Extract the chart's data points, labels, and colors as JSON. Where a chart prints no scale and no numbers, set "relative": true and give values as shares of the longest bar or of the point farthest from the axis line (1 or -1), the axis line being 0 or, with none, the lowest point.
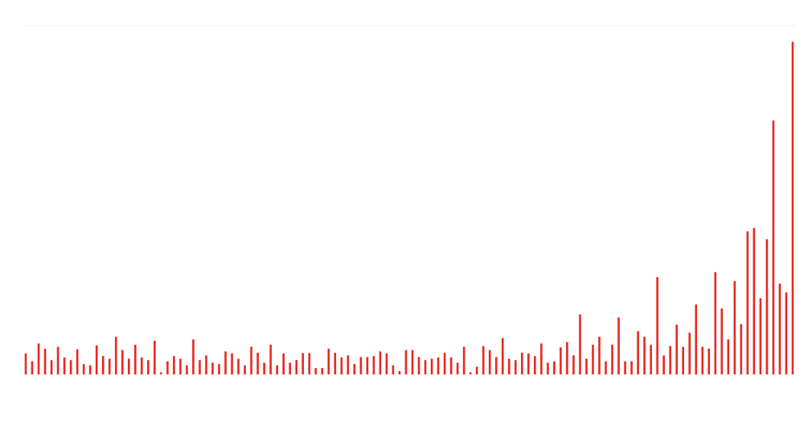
{
  "chart_data": {
    "type": "bar",
    "relative": true,
    "color": "#e8271f",
    "categories": [
      null,
      null,
      null,
      null,
      null,
      null,
      null,
      null,
      null,
      null,
      null,
      null,
      null,
      null,
      null,
      null,
      null,
      null,
      null,
      null,
      null,
      null,
      null,
      null,
      null,
      null,
      null,
      null,
      null,
      null,
      null,
      null,
      null,
      null,
      null,
      null,
      null,
      null,
      null,
      null,
      null,
      null,
      null,
      null,
      null,
      null,
      null,
      null,
      null,
      null,
      null,
      null,
      null,
      null,
      null,
      null,
      null,
      null,
      null,
      null,
      null,
      null,
      null,
      null,
      null,
      null,
      null,
      null,
      null,
      null,
      null,
      null,
      null,
      null,
      null,
      null,
      null,
      null,
      null,
      null,
      null,
      null,
      null,
      null,
      null,
      null,
      null,
      null,
      null,
      null,
      null,
      null,
      null,
      null,
      null,
      null,
      null,
      null,
      null,
      null,
      null,
      null,
      null,
      null,
      null,
      null,
      null,
      null,
      null,
      null,
      null,
      null,
      null,
      null,
      null,
      null,
      null,
      null,
      null,
      null
    ],
    "values": [
      0.063,
      0.039,
      0.093,
      0.077,
      0.043,
      0.083,
      0.051,
      0.043,
      0.075,
      0.031,
      0.027,
      0.087,
      0.055,
      0.047,
      0.113,
      0.073,
      0.047,
      0.089,
      0.051,
      0.043,
      0.101,
      0.006,
      0.039,
      0.055,
      0.047,
      0.027,
      0.105,
      0.043,
      0.057,
      0.035,
      0.031,
      0.069,
      0.063,
      0.047,
      0.027,
      0.083,
      0.065,
      0.035,
      0.089,
      0.027,
      0.063,
      0.035,
      0.043,
      0.064,
      0.064,
      0.019,
      0.019,
      0.077,
      0.065,
      0.051,
      0.057,
      0.031,
      0.052,
      0.052,
      0.055,
      0.069,
      0.063,
      0.027,
      0.01,
      0.073,
      0.073,
      0.052,
      0.043,
      0.047,
      0.051,
      0.065,
      0.051,
      0.035,
      0.083,
      0.006,
      0.023,
      0.085,
      0.073,
      0.052,
      0.109,
      0.047,
      0.043,
      0.065,
      0.063,
      0.055,
      0.093,
      0.035,
      0.039,
      0.081,
      0.097,
      0.057,
      0.18,
      0.047,
      0.089,
      0.113,
      0.039,
      0.089,
      0.171,
      0.039,
      0.039,
      0.13,
      0.113,
      0.089,
      0.292,
      0.057,
      0.085,
      0.149,
      0.083,
      0.125,
      0.21,
      0.083,
      0.077,
      0.307,
      0.198,
      0.105,
      0.28,
      0.151,
      0.43,
      0.44,
      0.229,
      0.406,
      0.763,
      0.273,
      0.246,
      1
    ]
  }
}
